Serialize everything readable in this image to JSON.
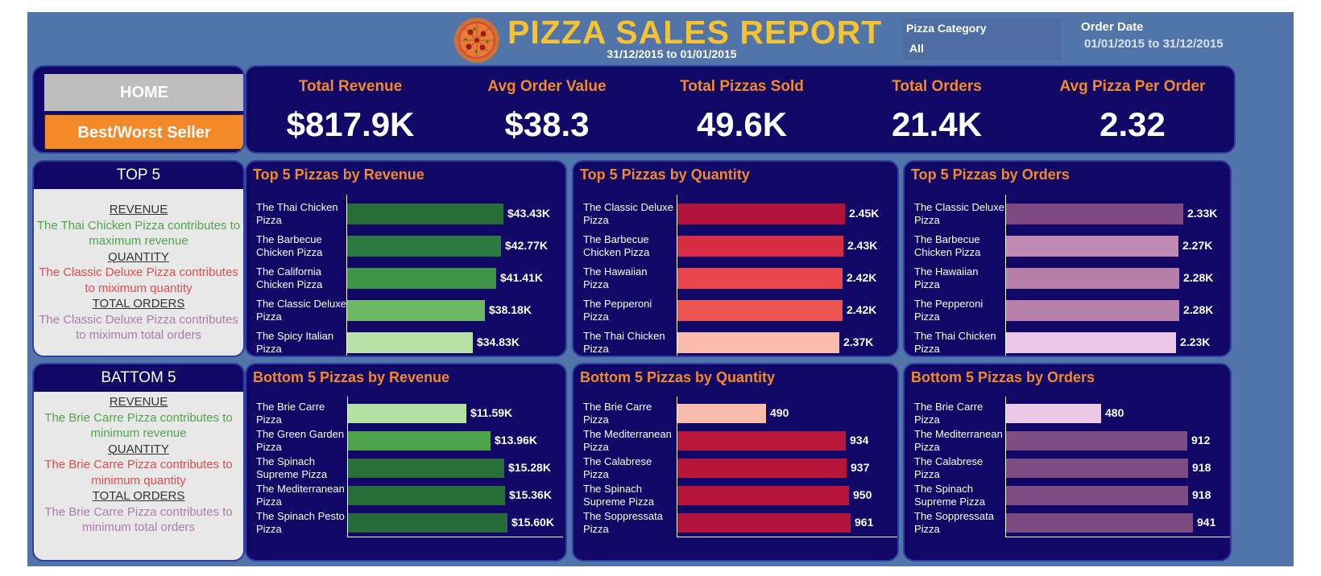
{
  "header": {
    "title": "PIZZA SALES REPORT",
    "subtitle_date": "31/12/2015 to 01/01/2015",
    "logo_icon": "pizza-icon"
  },
  "filters": {
    "category": {
      "label": "Pizza Category",
      "value": "All"
    },
    "date": {
      "label": "Order Date",
      "value": "01/01/2015 to 31/12/2015"
    }
  },
  "nav": {
    "home_label": "HOME",
    "best_worst_label": "Best/Worst Seller"
  },
  "kpis": [
    {
      "label": "Total Revenue",
      "value": "$817.9K"
    },
    {
      "label": "Avg Order Value",
      "value": "$38.3"
    },
    {
      "label": "Total Pizzas Sold",
      "value": "49.6K"
    },
    {
      "label": "Total Orders",
      "value": "21.4K"
    },
    {
      "label": "Avg Pizza Per Order",
      "value": "2.32"
    }
  ],
  "summary_top": {
    "title": "TOP 5",
    "revenue_head": "REVENUE",
    "revenue_text": "The Thai Chicken Pizza contributes to maximum revenue",
    "quantity_head": "QUANTITY",
    "quantity_text": "The Classic Deluxe Pizza contributes to miximum quantity",
    "orders_head": "TOTAL ORDERS",
    "orders_text": "The Classic Deluxe Pizza contributes to miximum total orders"
  },
  "summary_bottom": {
    "title": "BATTOM 5",
    "revenue_head": "REVENUE",
    "revenue_text": "The Brie Carre Pizza contributes to minimum revenue",
    "quantity_head": "QUANTITY",
    "quantity_text": "The Brie Carre Pizza contributes to minimum quantity",
    "orders_head": "TOTAL ORDERS",
    "orders_text": "The Brie Carre Pizza contributes to minimum total orders"
  },
  "colors": {
    "accent": "#f4892a",
    "panel": "#100766",
    "background": "#5174a9",
    "title": "#f4c232"
  },
  "chart_data": [
    {
      "type": "bar",
      "title": "Top 5 Pizzas by Revenue",
      "categories": [
        "The Thai Chicken Pizza",
        "The Barbecue Chicken Pizza",
        "The California Chicken Pizza",
        "The Classic Deluxe Pizza",
        "The Spicy Italian Pizza"
      ],
      "cat_lines": [
        [
          "The Thai Chicken",
          "Pizza"
        ],
        [
          "The Barbecue",
          "Chicken Pizza"
        ],
        [
          "The California",
          "Chicken Pizza"
        ],
        [
          "The Classic Deluxe",
          "Pizza"
        ],
        [
          "The Spicy Italian",
          "Pizza"
        ]
      ],
      "values": [
        43430,
        42770,
        41410,
        38180,
        34830
      ],
      "labels": [
        "$43.43K",
        "$42.77K",
        "$41.41K",
        "$38.18K",
        "$34.83K"
      ],
      "colors": [
        "#266d3a",
        "#2b7a3f",
        "#3d9447",
        "#6cb865",
        "#b6e2a8"
      ]
    },
    {
      "type": "bar",
      "title": "Top 5 Pizzas by Quantity",
      "categories": [
        "The Classic Deluxe Pizza",
        "The Barbecue Chicken Pizza",
        "The Hawaiian Pizza",
        "The Pepperoni Pizza",
        "The Thai Chicken Pizza"
      ],
      "cat_lines": [
        [
          "The Classic Deluxe",
          "Pizza"
        ],
        [
          "The Barbecue",
          "Chicken Pizza"
        ],
        [
          "The Hawaiian",
          "Pizza"
        ],
        [
          "The Pepperoni",
          "Pizza"
        ],
        [
          "The Thai Chicken",
          "Pizza"
        ]
      ],
      "values": [
        2450,
        2430,
        2420,
        2420,
        2370
      ],
      "labels": [
        "2.45K",
        "2.43K",
        "2.42K",
        "2.42K",
        "2.37K"
      ],
      "colors": [
        "#b3123a",
        "#d92b42",
        "#e8464a",
        "#ee5550",
        "#fcbcad"
      ]
    },
    {
      "type": "bar",
      "title": "Top 5 Pizzas by Orders",
      "categories": [
        "The Classic Deluxe Pizza",
        "The Barbecue Chicken Pizza",
        "The Hawaiian Pizza",
        "The Pepperoni Pizza",
        "The Thai Chicken Pizza"
      ],
      "cat_lines": [
        [
          "The Classic Deluxe",
          "Pizza"
        ],
        [
          "The Barbecue",
          "Chicken Pizza"
        ],
        [
          "The Hawaiian",
          "Pizza"
        ],
        [
          "The Pepperoni",
          "Pizza"
        ],
        [
          "The Thai Chicken",
          "Pizza"
        ]
      ],
      "values": [
        2330,
        2270,
        2280,
        2280,
        2230
      ],
      "labels": [
        "2.33K",
        "2.27K",
        "2.28K",
        "2.28K",
        "2.23K"
      ],
      "colors": [
        "#7c4a80",
        "#c088b3",
        "#b77ea9",
        "#b87fab",
        "#ecc8e7"
      ]
    },
    {
      "type": "bar",
      "title": "Bottom 5 Pizzas by Revenue",
      "categories": [
        "The Brie Carre Pizza",
        "The Green Garden Pizza",
        "The Spinach Supreme Pizza",
        "The Mediterranean Pizza",
        "The Spinach Pesto Pizza"
      ],
      "cat_lines": [
        [
          "The Brie Carre",
          "Pizza"
        ],
        [
          "The Green Garden",
          "Pizza"
        ],
        [
          "The Spinach",
          "Supreme Pizza"
        ],
        [
          "The Mediterranean",
          "Pizza"
        ],
        [
          "The Spinach Pesto",
          "Pizza"
        ]
      ],
      "values": [
        11590,
        13960,
        15280,
        15360,
        15600
      ],
      "labels": [
        "$11.59K",
        "$13.96K",
        "$15.28K",
        "$15.36K",
        "$15.60K"
      ],
      "colors": [
        "#b3e1a3",
        "#4ea34b",
        "#277139",
        "#266d3a",
        "#256a39"
      ]
    },
    {
      "type": "bar",
      "title": "Bottom 5 Pizzas by Quantity",
      "categories": [
        "The Brie Carre Pizza",
        "The Mediterranean Pizza",
        "The Calabrese Pizza",
        "The Spinach Supreme Pizza",
        "The Soppressata Pizza"
      ],
      "cat_lines": [
        [
          "The Brie Carre",
          "Pizza"
        ],
        [
          "The Mediterranean",
          "Pizza"
        ],
        [
          "The Calabrese",
          "Pizza"
        ],
        [
          "The Spinach",
          "Supreme Pizza"
        ],
        [
          "The Soppressata",
          "Pizza"
        ]
      ],
      "values": [
        490,
        934,
        937,
        950,
        961
      ],
      "labels": [
        "490",
        "934",
        "937",
        "950",
        "961"
      ],
      "colors": [
        "#fcbcad",
        "#b9163c",
        "#b8153b",
        "#b6143a",
        "#b3123a"
      ]
    },
    {
      "type": "bar",
      "title": "Bottom 5 Pizzas by Orders",
      "categories": [
        "The Brie Carre Pizza",
        "The Mediterranean Pizza",
        "The Calabrese Pizza",
        "The Spinach Supreme Pizza",
        "The Soppressata Pizza"
      ],
      "cat_lines": [
        [
          "The Brie Carre",
          "Pizza"
        ],
        [
          "The Mediterranean",
          "Pizza"
        ],
        [
          "The Calabrese",
          "Pizza"
        ],
        [
          "The Spinach",
          "Supreme Pizza"
        ],
        [
          "The Soppressata",
          "Pizza"
        ]
      ],
      "values": [
        480,
        912,
        918,
        918,
        941
      ],
      "labels": [
        "480",
        "912",
        "918",
        "918",
        "941"
      ],
      "colors": [
        "#ecc8e7",
        "#7e4d83",
        "#7d4c82",
        "#7d4c82",
        "#7a4a80"
      ]
    }
  ]
}
